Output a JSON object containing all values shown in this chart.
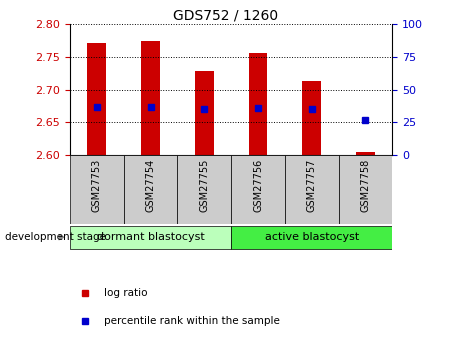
{
  "title": "GDS752 / 1260",
  "samples": [
    "GSM27753",
    "GSM27754",
    "GSM27755",
    "GSM27756",
    "GSM27757",
    "GSM27758"
  ],
  "log_ratio_top": [
    2.771,
    2.774,
    2.728,
    2.756,
    2.713,
    2.605
  ],
  "log_ratio_bottom": [
    2.6,
    2.6,
    2.6,
    2.6,
    2.6,
    2.6
  ],
  "percentile_rank": [
    37,
    37,
    35,
    36,
    35,
    27
  ],
  "ylim": [
    2.6,
    2.8
  ],
  "ylim_right": [
    0,
    100
  ],
  "yticks_left": [
    2.6,
    2.65,
    2.7,
    2.75,
    2.8
  ],
  "yticks_right": [
    0,
    25,
    50,
    75,
    100
  ],
  "bar_color": "#cc0000",
  "marker_color": "#0000cc",
  "bar_width": 0.35,
  "groups": [
    {
      "label": "dormant blastocyst",
      "n_samples": 3,
      "color": "#bbffbb"
    },
    {
      "label": "active blastocyst",
      "n_samples": 3,
      "color": "#44ee44"
    }
  ],
  "xlabel_group": "development stage",
  "legend_log_ratio": "log ratio",
  "legend_percentile": "percentile rank within the sample",
  "tick_label_color_left": "#cc0000",
  "tick_label_color_right": "#0000cc",
  "sample_box_color": "#cccccc",
  "title_fontsize": 10,
  "axis_fontsize": 8,
  "legend_fontsize": 7.5,
  "group_fontsize": 8
}
